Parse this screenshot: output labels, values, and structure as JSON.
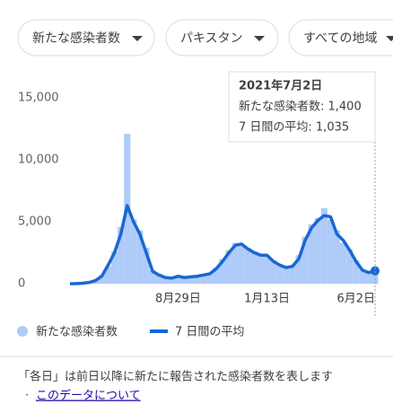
{
  "filters": [
    "新たな感染者数",
    "パキスタン",
    "すべての地域"
  ],
  "chart_data": {
    "type": "bar",
    "categories": [
      null,
      null,
      null,
      null,
      null,
      null,
      null,
      null,
      null,
      null,
      null,
      null,
      null,
      null,
      null,
      null,
      null,
      "8月29日",
      null,
      null,
      null,
      null,
      null,
      null,
      null,
      null,
      null,
      null,
      null,
      null,
      null,
      "1月13日",
      null,
      null,
      null,
      null,
      null,
      null,
      null,
      null,
      null,
      null,
      null,
      null,
      null,
      "6月2日",
      null,
      null,
      null
    ],
    "series": [
      {
        "name": "新たな感染者数",
        "type": "bar",
        "color": "#aecbfa",
        "values": [
          0,
          20,
          60,
          150,
          300,
          700,
          1400,
          2600,
          4600,
          12100,
          5200,
          4300,
          2900,
          1100,
          800,
          550,
          450,
          600,
          480,
          520,
          650,
          700,
          850,
          1300,
          2000,
          2700,
          3300,
          3100,
          2900,
          2600,
          2400,
          2200,
          1900,
          1500,
          1200,
          1500,
          2300,
          3800,
          4800,
          5300,
          6100,
          5200,
          4300,
          3300,
          2800,
          1900,
          1100,
          900,
          1400
        ]
      },
      {
        "name": "7 日間の平均",
        "type": "line",
        "color": "#1967d2",
        "values": [
          0,
          10,
          40,
          100,
          250,
          600,
          1500,
          2500,
          4000,
          6300,
          5000,
          4000,
          2500,
          1000,
          700,
          500,
          450,
          600,
          500,
          550,
          600,
          700,
          800,
          1200,
          1800,
          2500,
          3100,
          3200,
          2800,
          2500,
          2300,
          2300,
          1800,
          1500,
          1300,
          1400,
          2000,
          3500,
          4500,
          5100,
          5500,
          5400,
          4000,
          3500,
          2700,
          1800,
          1100,
          900,
          1035
        ]
      }
    ],
    "ylim": [
      0,
      15000
    ],
    "yticks": [
      0,
      {
        "value": 5000,
        "label": "5,000"
      },
      {
        "value": 10000,
        "label": "10,000"
      },
      {
        "value": 15000,
        "label": "15,000"
      }
    ],
    "grid": false,
    "tooltip": {
      "title": "2021年7月2日",
      "lines": [
        "新たな感染者数: 1,400",
        "7 日間の平均: 1,035"
      ]
    }
  },
  "footer": {
    "note": "「各日」は前日以降に新たに報告された感染者数を表します",
    "bullet": "·",
    "link": "このデータについて"
  }
}
